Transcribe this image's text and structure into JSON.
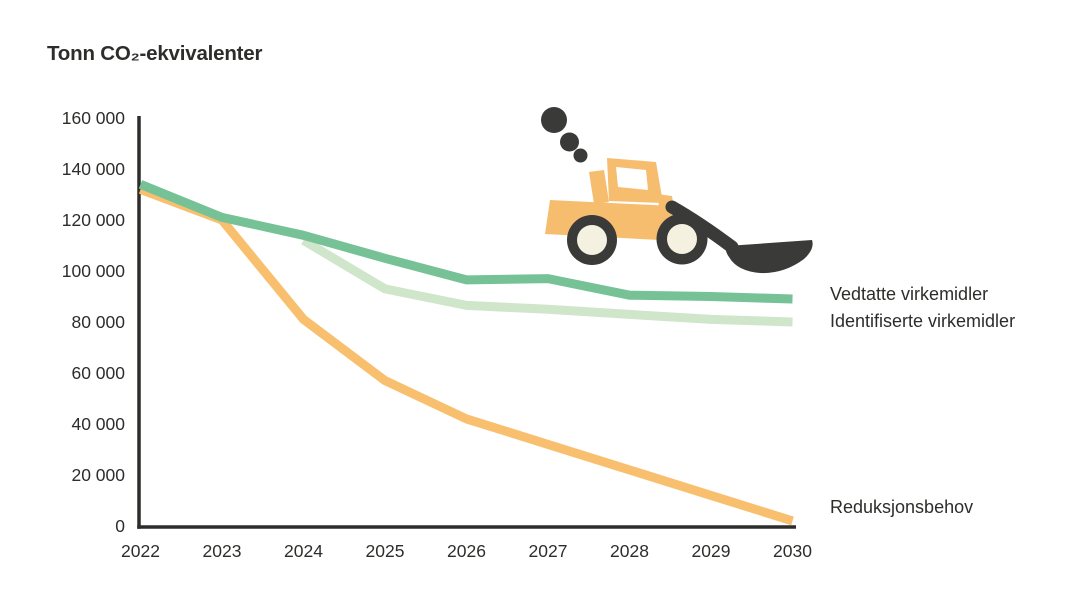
{
  "chart_data": {
    "type": "line",
    "title": "Tonn CO₂-ekvivalenter",
    "xlabel": "",
    "ylabel": "Tonn CO₂-ekvivalenter",
    "x": [
      "2022",
      "2023",
      "2024",
      "2025",
      "2026",
      "2027",
      "2028",
      "2029",
      "2030"
    ],
    "ylim": [
      0,
      160000
    ],
    "grid": false,
    "legend_position": "right-of-line-end",
    "y_ticks": [
      {
        "label": "160 000",
        "value": 160000
      },
      {
        "label": "140 000",
        "value": 140000
      },
      {
        "label": "120 000",
        "value": 120000
      },
      {
        "label": "100 000",
        "value": 100000
      },
      {
        "label": "80 000",
        "value": 80000
      },
      {
        "label": "60 000",
        "value": 60000
      },
      {
        "label": "40 000",
        "value": 40000
      },
      {
        "label": "20 000",
        "value": 20000
      },
      {
        "label": "0",
        "value": 0
      }
    ],
    "series": [
      {
        "name": "Vedtatte virkemidler",
        "color": "#76c296",
        "values": [
          134000,
          121000,
          114000,
          105000,
          96500,
          97000,
          90500,
          90000,
          89000
        ]
      },
      {
        "name": "Identifiserte virkemidler",
        "color": "#cfe6cb",
        "values": [
          null,
          null,
          112000,
          93000,
          86500,
          85000,
          83000,
          81000,
          80000
        ]
      },
      {
        "name": "Reduksjonsbehov",
        "color": "#f8c06e",
        "values": [
          132000,
          120000,
          81000,
          57000,
          42000,
          32000,
          22000,
          12000,
          2000
        ]
      }
    ]
  },
  "colors": {
    "ink": "#2d2d2b",
    "axis": "#2d2d2b",
    "machine_dark": "#3a3a38",
    "machine_orange": "#f7bd6e",
    "hub_cream": "#f5f1e1",
    "window_white": "#ffffff"
  },
  "illustration": {
    "name": "wheel-loader-with-exhaust-smoke"
  }
}
